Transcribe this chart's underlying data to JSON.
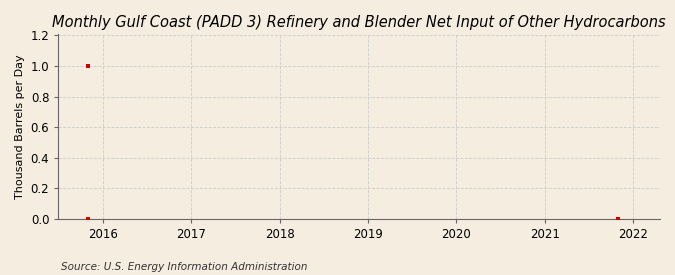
{
  "title": "Monthly Gulf Coast (PADD 3) Refinery and Blender Net Input of Other Hydrocarbons",
  "ylabel": "Thousand Barrels per Day",
  "source": "Source: U.S. Energy Information Administration",
  "background_color": "#f5ede0",
  "plot_bg_color": "#f5ede0",
  "grid_color": "#cccccc",
  "marker_color": "#cc0000",
  "xlim": [
    2015.5,
    2022.3
  ],
  "ylim": [
    0.0,
    1.21
  ],
  "yticks": [
    0.0,
    0.2,
    0.4,
    0.6,
    0.8,
    1.0,
    1.2
  ],
  "xticks": [
    2016,
    2017,
    2018,
    2019,
    2020,
    2021,
    2022
  ],
  "data_x": [
    2015.83,
    2015.83,
    2021.83
  ],
  "data_y": [
    1.0,
    0.0,
    0.0
  ],
  "title_fontsize": 10.5,
  "label_fontsize": 8,
  "tick_fontsize": 8.5,
  "source_fontsize": 7.5
}
